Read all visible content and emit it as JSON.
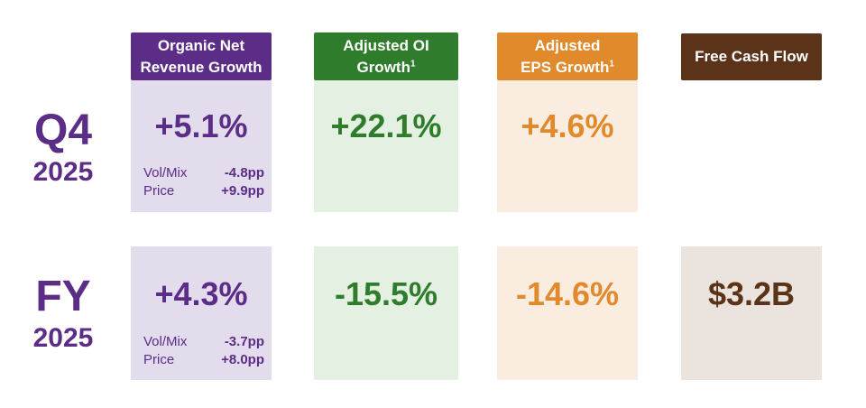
{
  "headers": {
    "organic": {
      "line1": "Organic Net",
      "line2": "Revenue Growth"
    },
    "oi": {
      "line1": "Adjusted OI",
      "line2": "Growth",
      "sup": "1"
    },
    "eps": {
      "line1": "Adjusted",
      "line2": "EPS Growth",
      "sup": "1"
    },
    "fcf": {
      "label": "Free Cash Flow"
    }
  },
  "rows": {
    "q4": {
      "label": "Q4",
      "year": "2025",
      "organic": "+5.1%",
      "volmix_label": "Vol/Mix",
      "volmix": "-4.8pp",
      "price_label": "Price",
      "price": "+9.9pp",
      "oi": "+22.1%",
      "eps": "+4.6%"
    },
    "fy": {
      "label": "FY",
      "year": "2025",
      "organic": "+4.3%",
      "volmix_label": "Vol/Mix",
      "volmix": "-3.7pp",
      "price_label": "Price",
      "price": "+8.0pp",
      "oi": "-15.5%",
      "eps": "-14.6%",
      "fcf": "$3.2B"
    }
  },
  "colors": {
    "purple": "#5b2d87",
    "green": "#2f7d2c",
    "orange": "#e08a2c",
    "brown": "#5a3318"
  }
}
